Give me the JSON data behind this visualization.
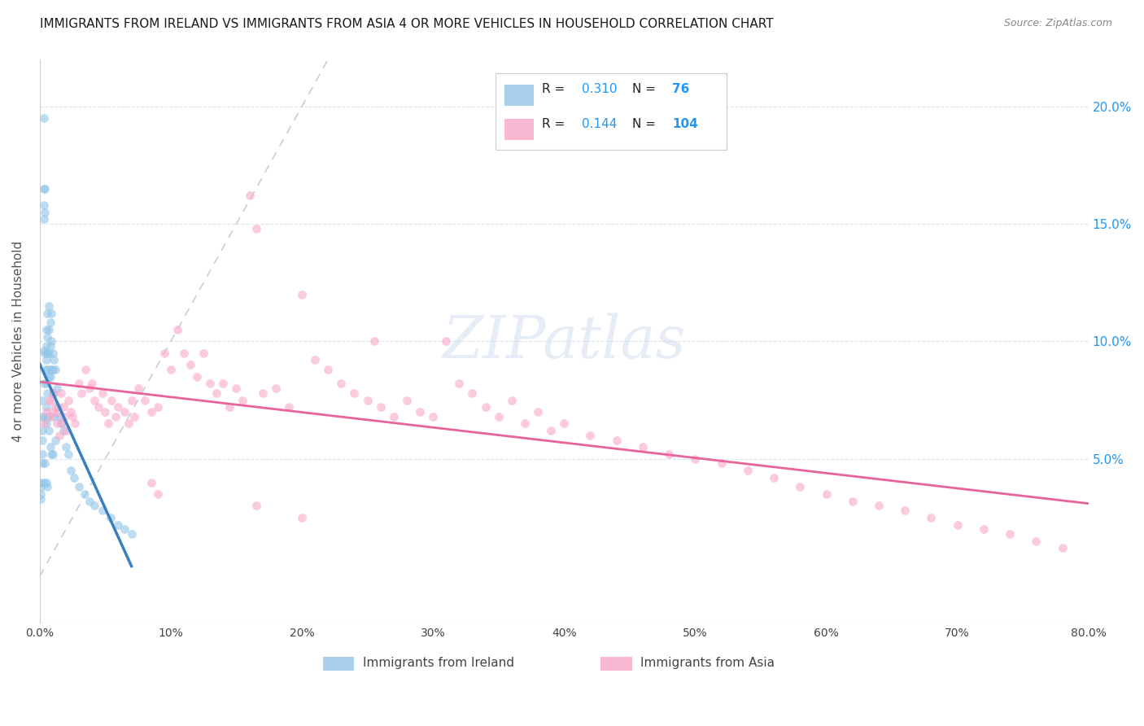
{
  "title": "IMMIGRANTS FROM IRELAND VS IMMIGRANTS FROM ASIA 4 OR MORE VEHICLES IN HOUSEHOLD CORRELATION CHART",
  "source": "Source: ZipAtlas.com",
  "ylabel": "4 or more Vehicles in Household",
  "r_ireland": 0.31,
  "n_ireland": 76,
  "r_asia": 0.144,
  "n_asia": 104,
  "legend_label1": "Immigrants from Ireland",
  "legend_label2": "Immigrants from Asia",
  "color_ireland": "#92c5e8",
  "color_asia": "#f9a8c9",
  "color_ireland_line": "#3a7fc1",
  "color_asia_line": "#e8649a",
  "color_diag": "#b8c4d8",
  "background": "#ffffff",
  "grid_color": "#dde4ef",
  "xlim": [
    0.0,
    0.8
  ],
  "ylim": [
    -0.02,
    0.22
  ],
  "ireland_x": [
    0.001,
    0.001,
    0.001,
    0.001,
    0.002,
    0.002,
    0.002,
    0.002,
    0.002,
    0.002,
    0.003,
    0.003,
    0.003,
    0.003,
    0.003,
    0.003,
    0.003,
    0.004,
    0.004,
    0.004,
    0.004,
    0.004,
    0.005,
    0.005,
    0.005,
    0.005,
    0.005,
    0.005,
    0.005,
    0.005,
    0.006,
    0.006,
    0.006,
    0.006,
    0.006,
    0.006,
    0.006,
    0.007,
    0.007,
    0.007,
    0.007,
    0.007,
    0.008,
    0.008,
    0.008,
    0.008,
    0.009,
    0.009,
    0.009,
    0.009,
    0.01,
    0.01,
    0.01,
    0.01,
    0.011,
    0.011,
    0.012,
    0.012,
    0.013,
    0.014,
    0.015,
    0.016,
    0.018,
    0.02,
    0.022,
    0.024,
    0.026,
    0.03,
    0.034,
    0.038,
    0.042,
    0.048,
    0.054,
    0.06,
    0.065,
    0.07
  ],
  "ireland_y": [
    0.04,
    0.038,
    0.035,
    0.033,
    0.075,
    0.068,
    0.062,
    0.058,
    0.052,
    0.048,
    0.195,
    0.165,
    0.158,
    0.152,
    0.096,
    0.082,
    0.04,
    0.165,
    0.155,
    0.095,
    0.068,
    0.048,
    0.105,
    0.098,
    0.092,
    0.088,
    0.082,
    0.072,
    0.065,
    0.04,
    0.112,
    0.102,
    0.095,
    0.088,
    0.078,
    0.068,
    0.038,
    0.115,
    0.105,
    0.095,
    0.085,
    0.062,
    0.108,
    0.098,
    0.085,
    0.055,
    0.112,
    0.1,
    0.088,
    0.052,
    0.095,
    0.088,
    0.078,
    0.052,
    0.092,
    0.068,
    0.088,
    0.058,
    0.08,
    0.072,
    0.068,
    0.065,
    0.062,
    0.055,
    0.052,
    0.045,
    0.042,
    0.038,
    0.035,
    0.032,
    0.03,
    0.028,
    0.025,
    0.022,
    0.02,
    0.018
  ],
  "asia_x": [
    0.003,
    0.005,
    0.007,
    0.008,
    0.009,
    0.01,
    0.011,
    0.012,
    0.013,
    0.014,
    0.015,
    0.016,
    0.017,
    0.018,
    0.019,
    0.02,
    0.022,
    0.024,
    0.025,
    0.027,
    0.03,
    0.032,
    0.035,
    0.038,
    0.04,
    0.042,
    0.045,
    0.048,
    0.05,
    0.052,
    0.055,
    0.058,
    0.06,
    0.065,
    0.068,
    0.07,
    0.072,
    0.075,
    0.08,
    0.085,
    0.09,
    0.095,
    0.1,
    0.105,
    0.11,
    0.115,
    0.12,
    0.125,
    0.13,
    0.135,
    0.14,
    0.145,
    0.15,
    0.155,
    0.16,
    0.165,
    0.17,
    0.18,
    0.19,
    0.2,
    0.21,
    0.22,
    0.23,
    0.24,
    0.25,
    0.255,
    0.26,
    0.27,
    0.28,
    0.29,
    0.3,
    0.31,
    0.32,
    0.33,
    0.34,
    0.35,
    0.36,
    0.37,
    0.38,
    0.39,
    0.4,
    0.42,
    0.44,
    0.46,
    0.48,
    0.5,
    0.52,
    0.54,
    0.56,
    0.58,
    0.6,
    0.62,
    0.64,
    0.66,
    0.68,
    0.7,
    0.72,
    0.74,
    0.76,
    0.78,
    0.085,
    0.09,
    0.165,
    0.2
  ],
  "asia_y": [
    0.065,
    0.07,
    0.075,
    0.068,
    0.075,
    0.07,
    0.078,
    0.072,
    0.065,
    0.07,
    0.06,
    0.078,
    0.065,
    0.072,
    0.068,
    0.062,
    0.075,
    0.07,
    0.068,
    0.065,
    0.082,
    0.078,
    0.088,
    0.08,
    0.082,
    0.075,
    0.072,
    0.078,
    0.07,
    0.065,
    0.075,
    0.068,
    0.072,
    0.07,
    0.065,
    0.075,
    0.068,
    0.08,
    0.075,
    0.07,
    0.072,
    0.095,
    0.088,
    0.105,
    0.095,
    0.09,
    0.085,
    0.095,
    0.082,
    0.078,
    0.082,
    0.072,
    0.08,
    0.075,
    0.162,
    0.148,
    0.078,
    0.08,
    0.072,
    0.12,
    0.092,
    0.088,
    0.082,
    0.078,
    0.075,
    0.1,
    0.072,
    0.068,
    0.075,
    0.07,
    0.068,
    0.1,
    0.082,
    0.078,
    0.072,
    0.068,
    0.075,
    0.065,
    0.07,
    0.062,
    0.065,
    0.06,
    0.058,
    0.055,
    0.052,
    0.05,
    0.048,
    0.045,
    0.042,
    0.038,
    0.035,
    0.032,
    0.03,
    0.028,
    0.025,
    0.022,
    0.02,
    0.018,
    0.015,
    0.012,
    0.04,
    0.035,
    0.03,
    0.025
  ]
}
